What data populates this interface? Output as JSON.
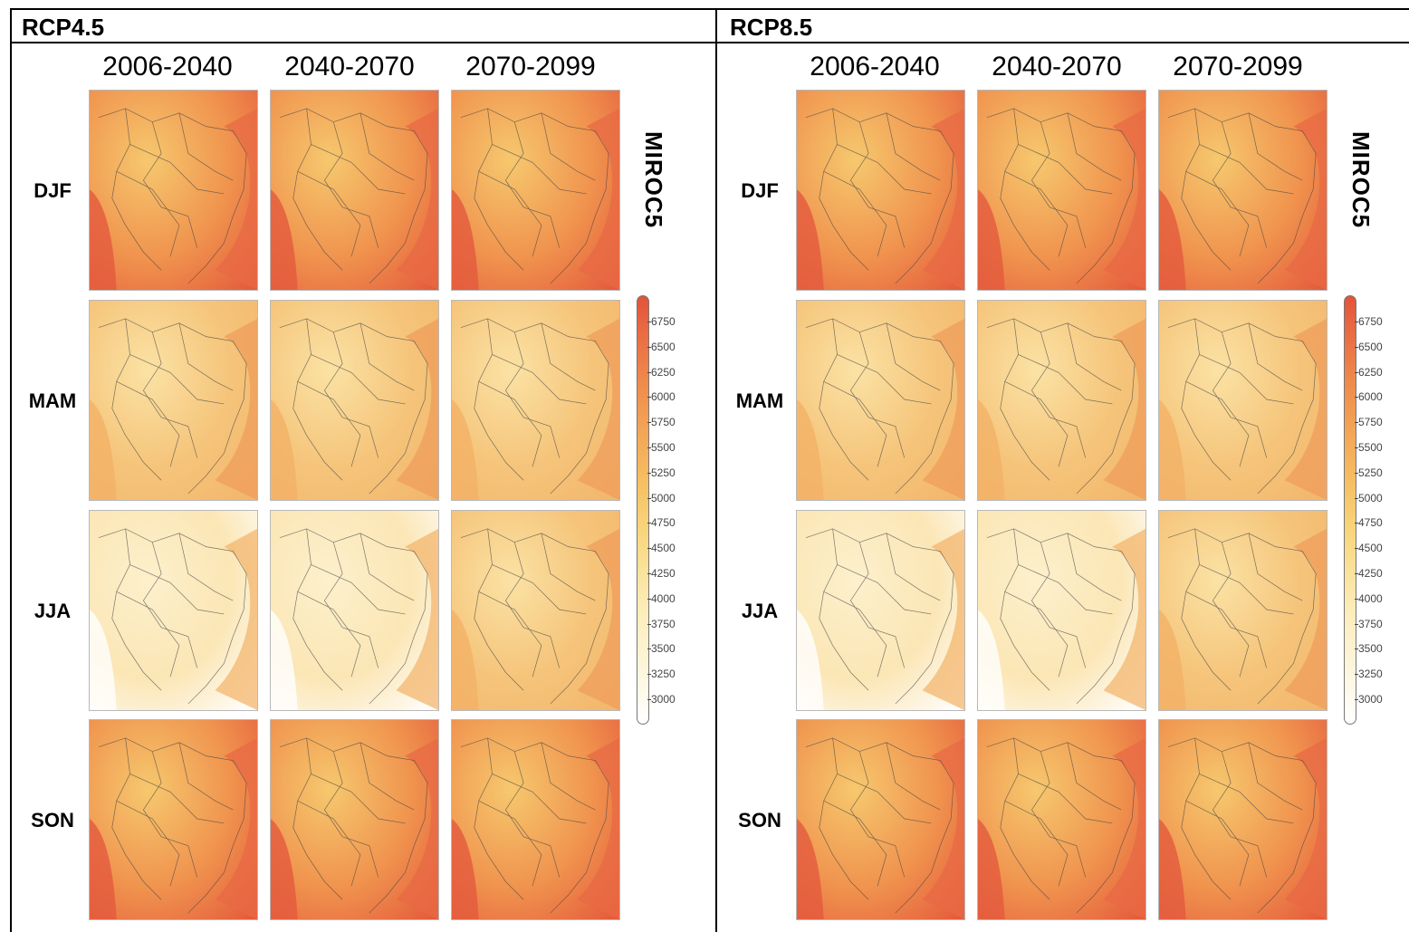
{
  "scenarios": [
    {
      "title": "RCP4.5"
    },
    {
      "title": "RCP8.5"
    }
  ],
  "periods": [
    "2006-2040",
    "2040-2070",
    "2070-2099"
  ],
  "seasons": [
    "DJF",
    "MAM",
    "JJA",
    "SON"
  ],
  "model": "MIROC5",
  "colorbar": {
    "labels": [
      "6750",
      "6500",
      "6250",
      "6000",
      "5750",
      "5500",
      "5250",
      "5000",
      "4750",
      "4500",
      "4250",
      "4000",
      "3750",
      "3500",
      "3250",
      "3000"
    ],
    "colors": {
      "high": "#e2533a",
      "mid": "#f6c064",
      "low": "#ffffff"
    }
  },
  "season_intensity": {
    "DJF": 0.85,
    "MAM": 0.45,
    "JJA": 0.35,
    "SON": 0.8
  }
}
